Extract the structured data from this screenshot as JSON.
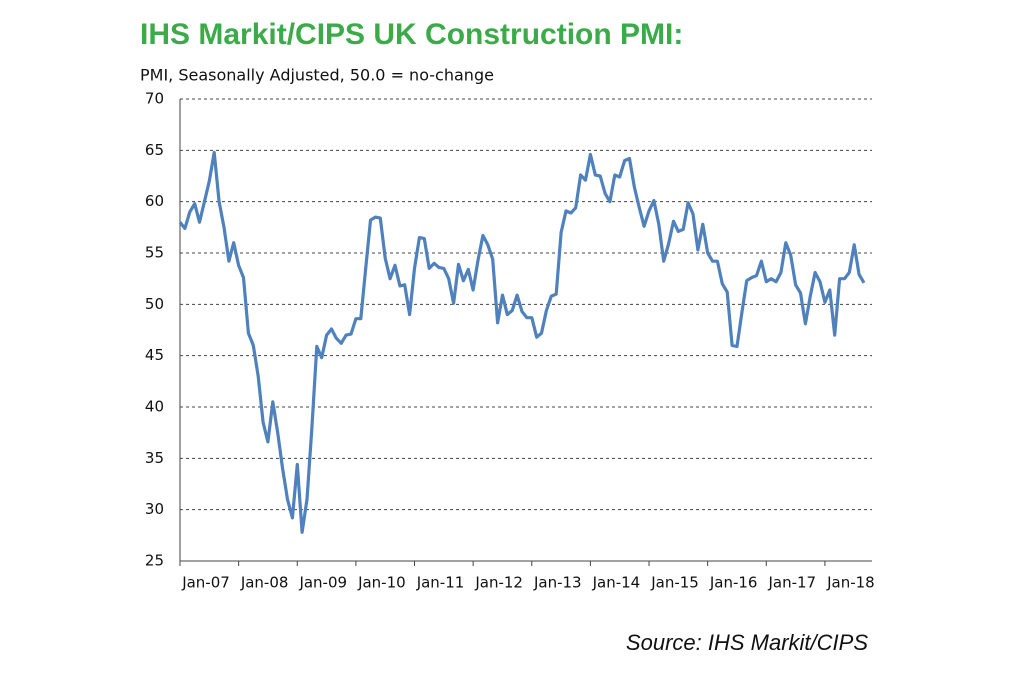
{
  "chart_data": {
    "type": "line",
    "title": "IHS Markit/CIPS UK Construction PMI:",
    "subtitle": "PMI, Seasonally Adjusted, 50.0 = no-change",
    "source": "Source: IHS Markit/CIPS",
    "categories": [
      "Jan-07",
      null,
      null,
      null,
      null,
      null,
      null,
      null,
      null,
      null,
      null,
      null,
      "Jan-08",
      null,
      null,
      null,
      null,
      null,
      null,
      null,
      null,
      null,
      null,
      null,
      "Jan-09",
      null,
      null,
      null,
      null,
      null,
      null,
      null,
      null,
      null,
      null,
      null,
      "Jan-10",
      null,
      null,
      null,
      null,
      null,
      null,
      null,
      null,
      null,
      null,
      null,
      "Jan-11",
      null,
      null,
      null,
      null,
      null,
      null,
      null,
      null,
      null,
      null,
      null,
      "Jan-12",
      null,
      null,
      null,
      null,
      null,
      null,
      null,
      null,
      null,
      null,
      null,
      "Jan-13",
      null,
      null,
      null,
      null,
      null,
      null,
      null,
      null,
      null,
      null,
      null,
      "Jan-14",
      null,
      null,
      null,
      null,
      null,
      null,
      null,
      null,
      null,
      null,
      null,
      "Jan-15",
      null,
      null,
      null,
      null,
      null,
      null,
      null,
      null,
      null,
      null,
      null,
      "Jan-16",
      null,
      null,
      null,
      null,
      null,
      null,
      null,
      null,
      null,
      null,
      null,
      "Jan-17",
      null,
      null,
      null,
      null,
      null,
      null,
      null,
      null,
      null,
      null,
      null,
      "Jan-18",
      null,
      null,
      null,
      null,
      null,
      null,
      null,
      null
    ],
    "series": [
      {
        "name": "UK Construction PMI",
        "color": "#4f81bd",
        "values": [
          58,
          57.4,
          59,
          59.8,
          58,
          60,
          62,
          64.8,
          60,
          57.5,
          54.2,
          56,
          53.8,
          52.6,
          47.2,
          46,
          43,
          38.5,
          36.6,
          40.5,
          37.5,
          34,
          31,
          29.2,
          34.4,
          27.8,
          31,
          38,
          45.9,
          44.8,
          47,
          47.6,
          46.7,
          46.2,
          47,
          47.1,
          48.6,
          48.6,
          53.5,
          58.2,
          58.5,
          58.4,
          54.5,
          52.5,
          53.8,
          51.8,
          51.9,
          49,
          53.5,
          56.5,
          56.4,
          53.5,
          54,
          53.6,
          53.5,
          52.5,
          50.1,
          53.9,
          52.3,
          53.4,
          51.4,
          54.3,
          56.7,
          55.8,
          54.4,
          48.2,
          50.9,
          49,
          49.4,
          50.9,
          49.3,
          48.7,
          48.7,
          46.8,
          47.2,
          49.4,
          50.8,
          51,
          57,
          59.1,
          58.9,
          59.4,
          62.6,
          62.1,
          64.6,
          62.6,
          62.5,
          60.8,
          60,
          62.6,
          62.4,
          64,
          64.2,
          61.4,
          59.4,
          57.6,
          59.1,
          60.1,
          57.8,
          54.2,
          55.9,
          58.1,
          57.1,
          57.3,
          59.9,
          58.8,
          55.3,
          57.8,
          55,
          54.2,
          54.2,
          52,
          51.2,
          46,
          45.9,
          49.2,
          52.3,
          52.6,
          52.8,
          54.2,
          52.2,
          52.5,
          52.2,
          53.1,
          56,
          54.8,
          51.9,
          51.1,
          48.1,
          50.8,
          53.1,
          52.2,
          50.2,
          51.4,
          47,
          52.5,
          52.5,
          53.1,
          55.8,
          52.9,
          52.1
        ]
      }
    ],
    "ylim": [
      25,
      70
    ],
    "yticks": [
      25,
      30,
      35,
      40,
      45,
      50,
      55,
      60,
      65,
      70
    ],
    "grid": true
  }
}
